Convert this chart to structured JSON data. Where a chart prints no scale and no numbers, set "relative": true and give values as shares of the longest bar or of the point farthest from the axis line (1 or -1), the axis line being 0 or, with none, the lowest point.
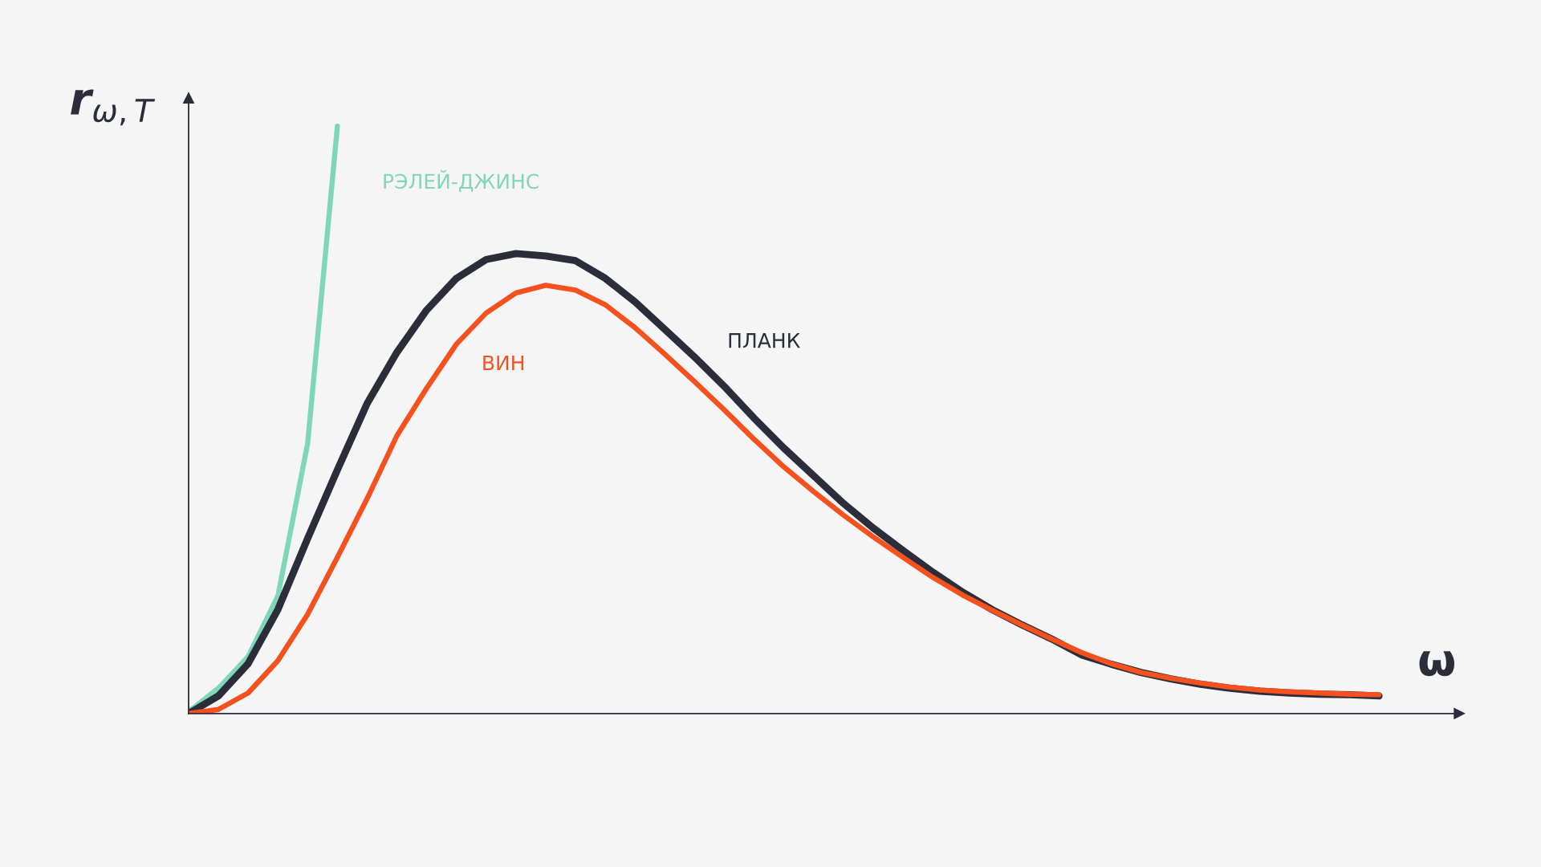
{
  "chart_data": {
    "type": "line",
    "relative": true,
    "xlabel": "ω",
    "ylabel": "r$_{ω,T}$",
    "legend": false,
    "marker": "none",
    "line_style": "solid",
    "categories": [
      null,
      null,
      null,
      null,
      null,
      null,
      null,
      null,
      null,
      null,
      null,
      null,
      null,
      null,
      null,
      null,
      null,
      null,
      null,
      null,
      null,
      null,
      null,
      null,
      null,
      null,
      null,
      null,
      null,
      null,
      null,
      null,
      null,
      null,
      null,
      null,
      null,
      null,
      null,
      null,
      null
    ],
    "series": [
      {
        "name": "РЭЛЕЙ-ДЖИНС",
        "color": "#7fd6b9",
        "values": [
          0.003,
          0.043,
          0.097,
          0.2,
          0.46,
          1.0,
          null,
          null,
          null,
          null,
          null,
          null,
          null,
          null,
          null,
          null,
          null,
          null,
          null,
          null,
          null,
          null,
          null,
          null,
          null,
          null,
          null,
          null,
          null,
          null,
          null,
          null,
          null,
          null,
          null,
          null,
          null,
          null,
          null,
          null,
          null
        ]
      },
      {
        "name": "ПЛАНК",
        "color": "#2b2d3a",
        "values": [
          0,
          0.03,
          0.085,
          0.177,
          0.298,
          0.415,
          0.528,
          0.615,
          0.687,
          0.741,
          0.773,
          0.783,
          0.779,
          0.771,
          0.741,
          0.701,
          0.654,
          0.607,
          0.557,
          0.503,
          0.452,
          0.405,
          0.358,
          0.316,
          0.278,
          0.241,
          0.207,
          0.177,
          0.151,
          0.127,
          0.1,
          0.084,
          0.07,
          0.059,
          0.05,
          0.043,
          0.038,
          0.035,
          0.033,
          0.032,
          0.03
        ]
      },
      {
        "name": "ВИН",
        "color": "#f4511e",
        "values": [
          0,
          0.007,
          0.035,
          0.09,
          0.169,
          0.266,
          0.366,
          0.473,
          0.554,
          0.629,
          0.682,
          0.716,
          0.729,
          0.721,
          0.696,
          0.657,
          0.612,
          0.565,
          0.517,
          0.467,
          0.42,
          0.378,
          0.338,
          0.301,
          0.266,
          0.232,
          0.202,
          0.176,
          0.151,
          0.127,
          0.104,
          0.085,
          0.07,
          0.06,
          0.052,
          0.045,
          0.04,
          0.037,
          0.035,
          0.033,
          0.032
        ]
      }
    ]
  }
}
